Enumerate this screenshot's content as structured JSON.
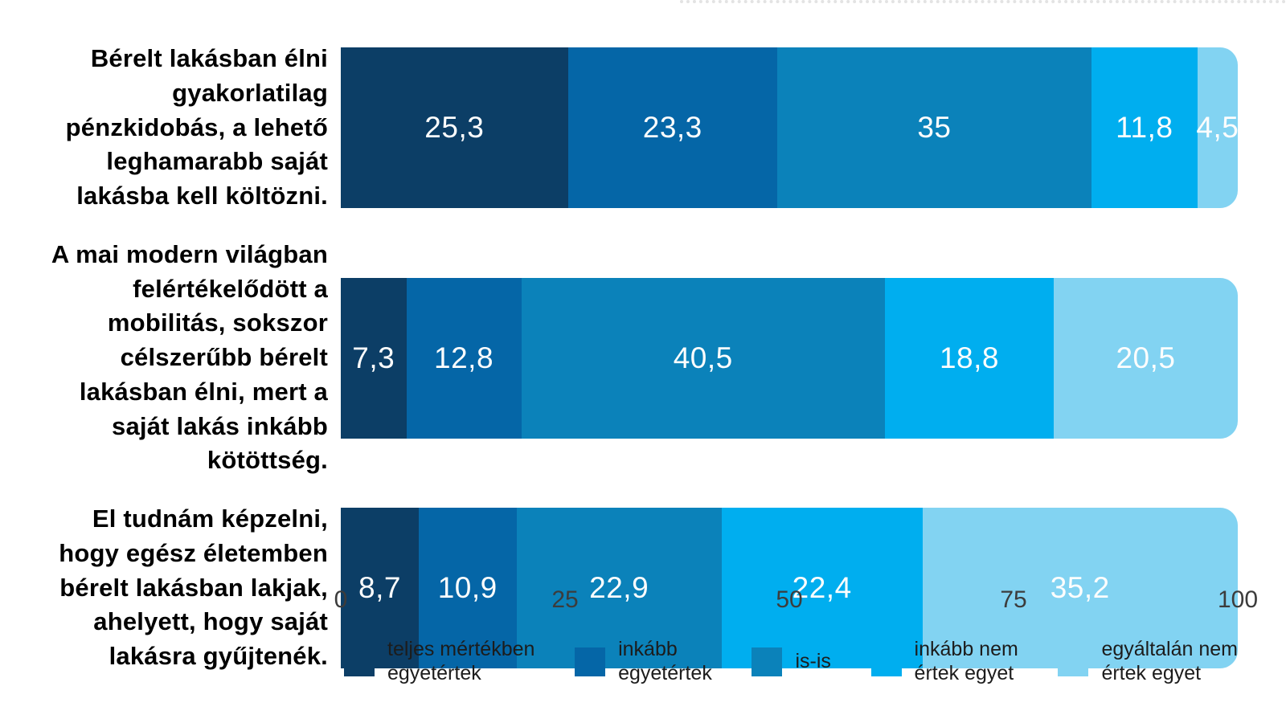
{
  "chart_data": {
    "type": "bar",
    "orientation": "horizontal",
    "stacked": true,
    "title": "",
    "xlabel": "",
    "ylabel": "",
    "xlim": [
      0,
      100
    ],
    "x_ticks": [
      "0",
      "25",
      "50",
      "75",
      "100"
    ],
    "grid": false,
    "legend_position": "bottom",
    "value_label_color": "#fdfdfd",
    "categories": [
      "Bérelt lakásban élni gyakorlatilag pénzkidobás, a lehető leghamarabb saját lakásba kell költözni.",
      "A mai modern világban felértékelődött a mobilitás, sokszor célszerűbb bérelt lakásban élni, mert a saját lakás inkább kötöttség.",
      "El tudnám képzelni, hogy egész életemben bérelt lakásban lakjak, ahelyett, hogy saját lakásra gyűjtenék."
    ],
    "series": [
      {
        "name": "teljes mértékben egyetértek",
        "color": "#0c3e66",
        "values": [
          25.3,
          7.3,
          8.7
        ],
        "labels": [
          "25,3",
          "7,3",
          "8,7"
        ]
      },
      {
        "name": "inkább egyetértek",
        "color": "#0566a7",
        "values": [
          23.3,
          12.8,
          10.9
        ],
        "labels": [
          "23,3",
          "12,8",
          "10,9"
        ]
      },
      {
        "name": "is-is",
        "color": "#0b82ba",
        "values": [
          35,
          40.5,
          22.9
        ],
        "labels": [
          "35",
          "40,5",
          "22,9"
        ]
      },
      {
        "name": "inkább nem értek egyet",
        "color": "#00aeef",
        "values": [
          11.8,
          18.8,
          22.4
        ],
        "labels": [
          "11,8",
          "18,8",
          "22,4"
        ]
      },
      {
        "name": "egyáltalán nem értek egyet",
        "color": "#82d3f2",
        "values": [
          4.5,
          20.5,
          35.2
        ],
        "labels": [
          "4,5",
          "20,5",
          "35,2"
        ]
      }
    ]
  },
  "legend": {
    "items": [
      {
        "color": "#0c3e66",
        "lines": [
          "teljes mértékben",
          "egyetértek"
        ]
      },
      {
        "color": "#0566a7",
        "lines": [
          "inkább",
          "egyetértek"
        ]
      },
      {
        "color": "#0b82ba",
        "lines": [
          "is-is"
        ]
      },
      {
        "color": "#00aeef",
        "lines": [
          "inkább nem",
          "értek egyet"
        ]
      },
      {
        "color": "#82d3f2",
        "lines": [
          "egyáltalán nem",
          "értek egyet"
        ]
      }
    ]
  },
  "axis": {
    "tick_color": "#3c3c3c"
  }
}
